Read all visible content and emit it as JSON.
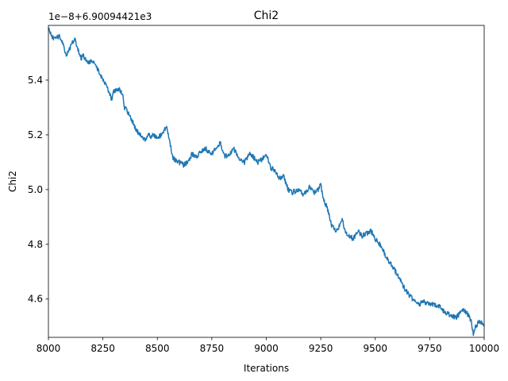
{
  "chart_data": {
    "type": "line",
    "title": "Chi2",
    "xlabel": "Iterations",
    "ylabel": "Chi2",
    "offset_label": "1e−8+6.90094421e3",
    "xlim": [
      8000,
      10000
    ],
    "ylim": [
      4.46,
      5.6
    ],
    "xticks": [
      8000,
      8250,
      8500,
      8750,
      9000,
      9250,
      9500,
      9750,
      10000
    ],
    "xtick_labels": [
      "8000",
      "8250",
      "8500",
      "8750",
      "9000",
      "9250",
      "9500",
      "9750",
      "10000"
    ],
    "yticks": [
      4.6,
      4.8,
      5.0,
      5.2,
      5.4
    ],
    "ytick_labels": [
      "4.6",
      "4.8",
      "5.0",
      "5.2",
      "5.4"
    ],
    "grid": false,
    "series": [
      {
        "color": "#1f77b4",
        "x": [
          8000,
          8010,
          8025,
          8050,
          8070,
          8080,
          8100,
          8120,
          8130,
          8150,
          8160,
          8180,
          8200,
          8220,
          8240,
          8250,
          8270,
          8290,
          8300,
          8320,
          8340,
          8350,
          8360,
          8380,
          8400,
          8420,
          8440,
          8460,
          8470,
          8480,
          8500,
          8520,
          8540,
          8550,
          8560,
          8570,
          8580,
          8600,
          8620,
          8640,
          8660,
          8680,
          8700,
          8720,
          8750,
          8770,
          8790,
          8800,
          8810,
          8830,
          8850,
          8870,
          8900,
          8920,
          8940,
          8960,
          8980,
          9000,
          9020,
          9040,
          9060,
          9080,
          9100,
          9120,
          9150,
          9170,
          9190,
          9200,
          9220,
          9240,
          9250,
          9260,
          9280,
          9300,
          9320,
          9340,
          9350,
          9360,
          9380,
          9400,
          9420,
          9440,
          9460,
          9480,
          9500,
          9520,
          9540,
          9560,
          9580,
          9600,
          9620,
          9640,
          9650,
          9670,
          9700,
          9720,
          9750,
          9770,
          9800,
          9820,
          9850,
          9870,
          9900,
          9920,
          9940,
          9950,
          9960,
          9970,
          9980,
          10000
        ],
        "values": [
          5.59,
          5.57,
          5.55,
          5.56,
          5.53,
          5.49,
          5.52,
          5.55,
          5.53,
          5.48,
          5.49,
          5.46,
          5.47,
          5.45,
          5.42,
          5.4,
          5.37,
          5.33,
          5.36,
          5.37,
          5.35,
          5.3,
          5.29,
          5.26,
          5.22,
          5.2,
          5.18,
          5.2,
          5.19,
          5.2,
          5.19,
          5.2,
          5.23,
          5.2,
          5.16,
          5.12,
          5.11,
          5.1,
          5.09,
          5.1,
          5.13,
          5.12,
          5.14,
          5.15,
          5.13,
          5.15,
          5.17,
          5.14,
          5.12,
          5.13,
          5.15,
          5.12,
          5.1,
          5.13,
          5.12,
          5.1,
          5.11,
          5.13,
          5.08,
          5.07,
          5.04,
          5.05,
          5.0,
          4.99,
          5.0,
          4.98,
          5.0,
          5.01,
          4.99,
          5.0,
          5.02,
          4.97,
          4.93,
          4.87,
          4.85,
          4.87,
          4.89,
          4.85,
          4.83,
          4.82,
          4.85,
          4.83,
          4.84,
          4.85,
          4.82,
          4.8,
          4.77,
          4.74,
          4.72,
          4.69,
          4.66,
          4.63,
          4.62,
          4.6,
          4.58,
          4.59,
          4.58,
          4.58,
          4.57,
          4.55,
          4.54,
          4.53,
          4.56,
          4.55,
          4.52,
          4.47,
          4.5,
          4.51,
          4.52,
          4.5
        ]
      }
    ]
  }
}
